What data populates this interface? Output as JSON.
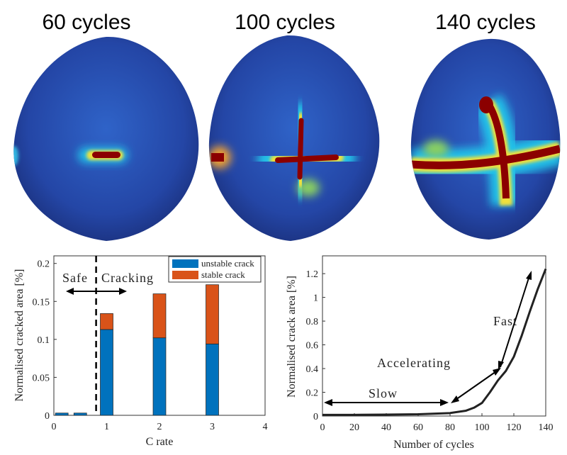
{
  "panel_titles": [
    "60 cycles",
    "100 cycles",
    "140 cycles"
  ],
  "colors": {
    "unstable": "#0072BD",
    "stable": "#D95319",
    "particle_base": "#2a4fb0",
    "crack_core": "#8b0000",
    "line": "#222222"
  },
  "chart_data": [
    {
      "type": "bar",
      "stacked": true,
      "title": "",
      "xlabel": "C rate",
      "ylabel": "Normalised cracked area [%]",
      "xlim": [
        0,
        4
      ],
      "ylim": [
        0,
        0.21
      ],
      "xticks": [
        "0",
        "1",
        "2",
        "3",
        "4"
      ],
      "yticks": [
        "0",
        "0.05",
        "0.1",
        "0.15",
        "0.2"
      ],
      "x": [
        0.15,
        0.5,
        1,
        2,
        3
      ],
      "series": [
        {
          "name": "unstable crack",
          "values": [
            0.003,
            0.003,
            0.113,
            0.102,
            0.094
          ]
        },
        {
          "name": "stable crack",
          "values": [
            0,
            0,
            0.021,
            0.058,
            0.078
          ]
        }
      ],
      "threshold_x": 0.8,
      "legend": "top-right",
      "annotations": [
        "Safe",
        "Cracking"
      ]
    },
    {
      "type": "line",
      "title": "",
      "xlabel": "Number of cycles",
      "ylabel": "Normalised crack area [%]",
      "xlim": [
        0,
        140
      ],
      "ylim": [
        0,
        1.35
      ],
      "xticks": [
        "0",
        "20",
        "40",
        "60",
        "80",
        "100",
        "120",
        "140"
      ],
      "yticks": [
        "0",
        "0.2",
        "0.4",
        "0.6",
        "0.8",
        "1",
        "1.2"
      ],
      "x": [
        0,
        20,
        40,
        60,
        80,
        90,
        95,
        100,
        105,
        110,
        115,
        120,
        125,
        130,
        135,
        140
      ],
      "series": [
        {
          "name": "crack area",
          "values": [
            0.01,
            0.01,
            0.012,
            0.015,
            0.025,
            0.045,
            0.07,
            0.11,
            0.2,
            0.3,
            0.38,
            0.5,
            0.68,
            0.88,
            1.07,
            1.24
          ]
        }
      ],
      "annotations": [
        "Slow",
        "Accelerating",
        "Fast"
      ]
    }
  ]
}
